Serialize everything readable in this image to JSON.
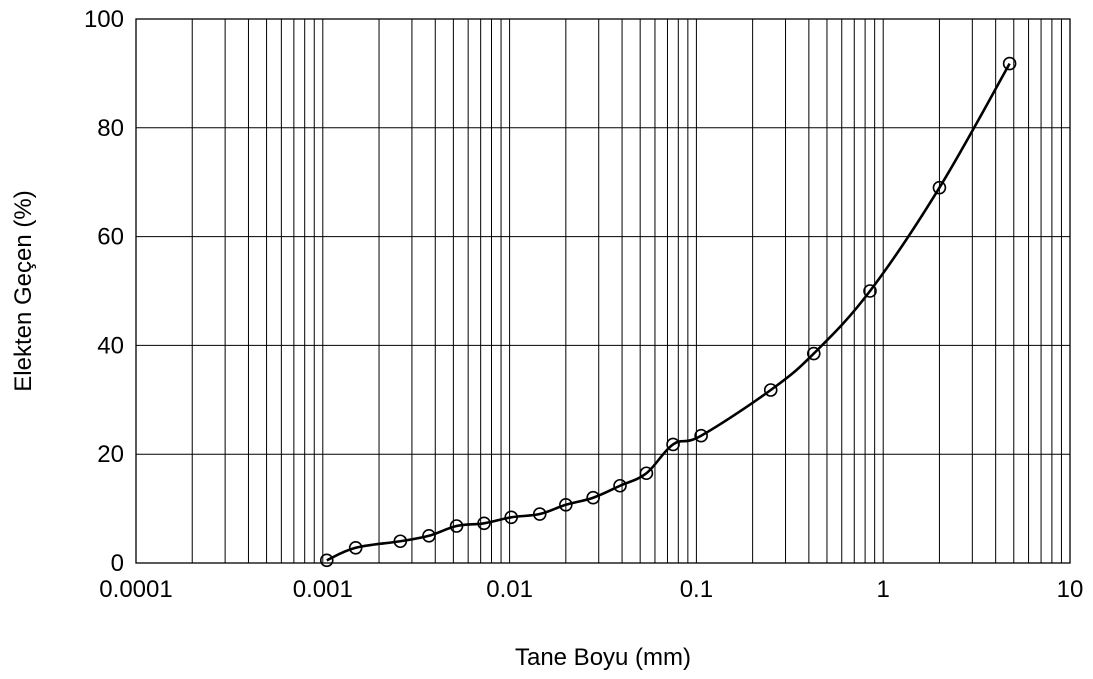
{
  "chart_data": {
    "type": "scatter",
    "xlabel": "Tane Boyu (mm)",
    "ylabel": "Elekten Geçen (%)",
    "x_scale": "log",
    "xlim": [
      0.0001,
      10
    ],
    "ylim": [
      0,
      100
    ],
    "x_ticks": [
      0.0001,
      0.001,
      0.01,
      0.1,
      1,
      10
    ],
    "x_tick_labels": [
      "0.0001",
      "0.001",
      "0.01",
      "0.1",
      "1",
      "10"
    ],
    "y_ticks": [
      0,
      20,
      40,
      60,
      80,
      100
    ],
    "y_tick_labels": [
      "0",
      "20",
      "40",
      "60",
      "80",
      "100"
    ],
    "grid": true,
    "legend": "none",
    "series": [
      {
        "line_color": "#000000",
        "marker": "open-circle",
        "smooth": true,
        "x": [
          0.00105,
          0.0015,
          0.0026,
          0.0037,
          0.0052,
          0.0073,
          0.0102,
          0.0145,
          0.02,
          0.028,
          0.039,
          0.054,
          0.075,
          0.106,
          0.25,
          0.425,
          0.85,
          2.0,
          4.75
        ],
        "y": [
          0.5,
          2.8,
          4.0,
          5.0,
          6.8,
          7.3,
          8.4,
          9.0,
          10.7,
          12.0,
          14.2,
          16.5,
          21.8,
          23.4,
          31.8,
          38.5,
          50.0,
          69.0,
          91.8
        ]
      }
    ]
  }
}
